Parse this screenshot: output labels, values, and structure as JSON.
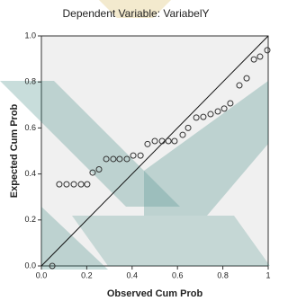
{
  "chart_data": {
    "type": "scatter",
    "title": "Dependent Variable: VariabelY",
    "x_label": "Observed Cum Prob",
    "y_label": "Expected Cum Prob",
    "x": [
      0.048,
      0.079,
      0.111,
      0.143,
      0.175,
      0.202,
      0.226,
      0.254,
      0.286,
      0.317,
      0.345,
      0.377,
      0.405,
      0.437,
      0.468,
      0.5,
      0.532,
      0.56,
      0.587,
      0.623,
      0.647,
      0.683,
      0.714,
      0.746,
      0.778,
      0.806,
      0.833,
      0.873,
      0.905,
      0.937,
      0.964,
      0.996
    ],
    "values": [
      0.0,
      0.355,
      0.355,
      0.355,
      0.355,
      0.355,
      0.406,
      0.42,
      0.465,
      0.465,
      0.465,
      0.465,
      0.48,
      0.48,
      0.53,
      0.543,
      0.543,
      0.543,
      0.543,
      0.57,
      0.6,
      0.645,
      0.648,
      0.66,
      0.672,
      0.684,
      0.707,
      0.785,
      0.816,
      0.898,
      0.91,
      0.938
    ],
    "color": "#333333",
    "xlim": [
      0,
      1
    ],
    "ylim": [
      0,
      1
    ],
    "xticks": [
      {
        "value": 0,
        "label": "0.0"
      },
      0.2,
      0.4,
      0.6,
      0.8,
      1
    ],
    "yticks": [
      {
        "value": 0,
        "label": "0.0"
      },
      0.2,
      0.4,
      0.6,
      0.8,
      {
        "value": 1,
        "label": "1.0"
      }
    ],
    "grid": false
  }
}
